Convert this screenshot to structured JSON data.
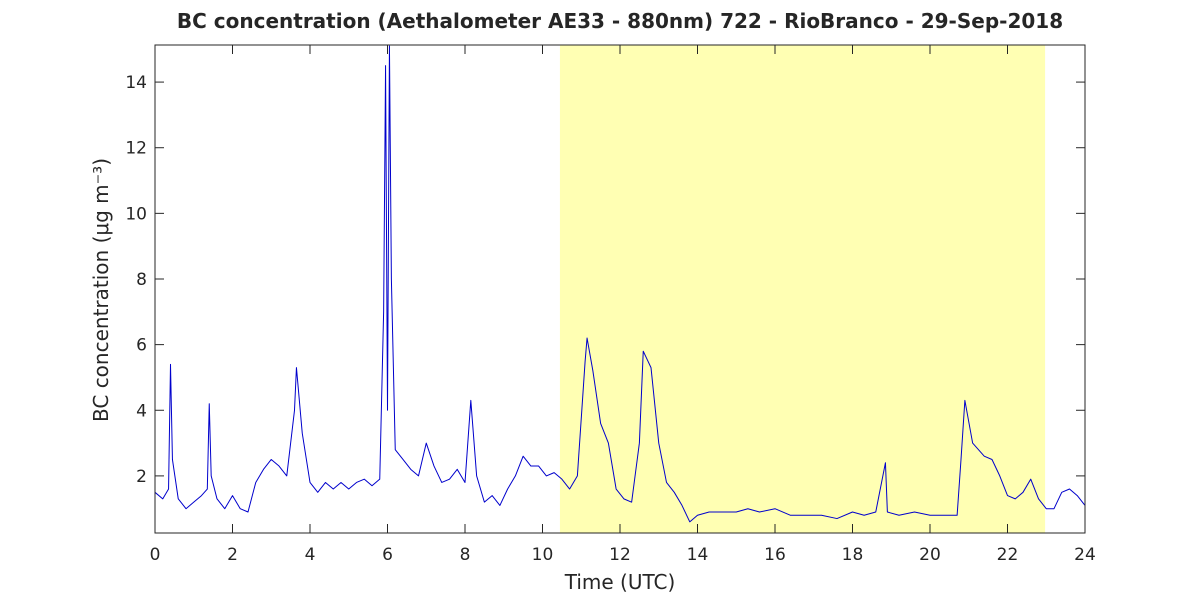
{
  "chart_data": {
    "type": "line",
    "title": "BC concentration (Aethalometer AE33 - 880nm) 722 - RioBranco - 29-Sep-2018",
    "x_label": "Time (UTC)",
    "y_label": "BC concentration (μg m⁻³)",
    "highlight": {
      "xrange": [
        10.45,
        22.97
      ],
      "color": "#ffffb3"
    },
    "x": [
      0,
      0.2,
      0.35,
      0.4,
      0.45,
      0.6,
      0.8,
      1,
      1.2,
      1.35,
      1.4,
      1.45,
      1.6,
      1.8,
      2,
      2.2,
      2.4,
      2.6,
      2.8,
      3,
      3.2,
      3.4,
      3.6,
      3.65,
      3.8,
      4,
      4.2,
      4.4,
      4.6,
      4.8,
      5,
      5.2,
      5.4,
      5.6,
      5.8,
      5.9,
      5.95,
      6,
      6.05,
      6.1,
      6.2,
      6.4,
      6.6,
      6.8,
      7,
      7.2,
      7.4,
      7.6,
      7.8,
      8,
      8.15,
      8.3,
      8.5,
      8.7,
      8.9,
      9.1,
      9.3,
      9.5,
      9.7,
      9.9,
      10.1,
      10.3,
      10.5,
      10.7,
      10.9,
      11.1,
      11.15,
      11.3,
      11.5,
      11.7,
      11.9,
      12.1,
      12.3,
      12.5,
      12.6,
      12.8,
      13,
      13.2,
      13.4,
      13.6,
      13.8,
      14,
      14.3,
      14.6,
      15,
      15.3,
      15.6,
      16,
      16.4,
      16.8,
      17.2,
      17.6,
      18,
      18.3,
      18.6,
      18.85,
      18.9,
      19.2,
      19.6,
      20,
      20.4,
      20.7,
      20.8,
      20.9,
      21.1,
      21.4,
      21.6,
      21.8,
      22,
      22.2,
      22.4,
      22.6,
      22.8,
      23,
      23.2,
      23.4,
      23.6,
      23.8,
      24
    ],
    "series": [
      {
        "color": "#0000cc",
        "values": [
          1.5,
          1.3,
          1.6,
          5.4,
          2.5,
          1.3,
          1.0,
          1.2,
          1.4,
          1.6,
          4.2,
          2.0,
          1.3,
          1.0,
          1.4,
          1.0,
          0.9,
          1.8,
          2.2,
          2.5,
          2.3,
          2.0,
          4.0,
          5.3,
          3.3,
          1.8,
          1.5,
          1.8,
          1.6,
          1.8,
          1.6,
          1.8,
          1.9,
          1.7,
          1.9,
          7.0,
          14.5,
          4.0,
          15.1,
          8.0,
          2.8,
          2.5,
          2.2,
          2.0,
          3.0,
          2.3,
          1.8,
          1.9,
          2.2,
          1.8,
          4.3,
          2.0,
          1.2,
          1.4,
          1.1,
          1.6,
          2.0,
          2.6,
          2.3,
          2.3,
          2.0,
          2.1,
          1.9,
          1.6,
          2.0,
          5.5,
          6.2,
          5.2,
          3.6,
          3.0,
          1.6,
          1.3,
          1.2,
          3.0,
          5.8,
          5.3,
          3.0,
          1.8,
          1.5,
          1.1,
          0.6,
          0.8,
          0.9,
          0.9,
          0.9,
          1.0,
          0.9,
          1.0,
          0.8,
          0.8,
          0.8,
          0.7,
          0.9,
          0.8,
          0.9,
          2.4,
          0.9,
          0.8,
          0.9,
          0.8,
          0.8,
          0.8,
          2.5,
          4.3,
          3.0,
          2.6,
          2.5,
          2.0,
          1.4,
          1.3,
          1.5,
          1.9,
          1.3,
          1.0,
          1.0,
          1.5,
          1.6,
          1.4,
          1.1
        ]
      }
    ],
    "xlim": [
      0,
      24
    ],
    "xticks": [
      0,
      2,
      4,
      6,
      8,
      10,
      12,
      14,
      16,
      18,
      20,
      22,
      24
    ],
    "ylim": [
      0.26,
      15.13
    ],
    "yticks": [
      2,
      4,
      6,
      8,
      10,
      12,
      14
    ]
  }
}
